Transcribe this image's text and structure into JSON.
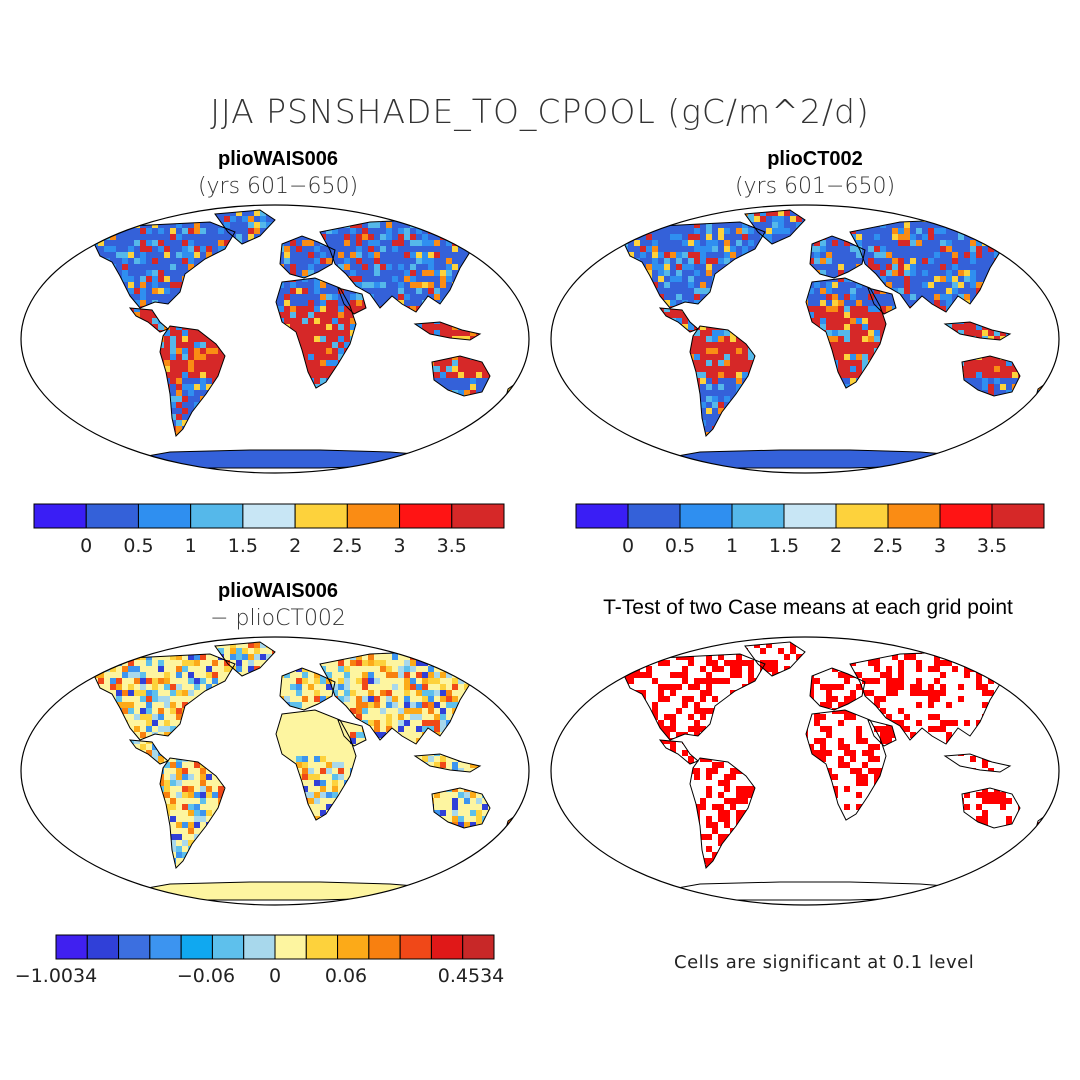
{
  "main_title": "JJA PSNSHADE_TO_CPOOL (gC/m^2/d)",
  "panels": [
    {
      "title": "plioWAIS006",
      "subtitle": "(yrs 601−650)",
      "field": "absolute"
    },
    {
      "title": "plioCT002",
      "subtitle": "(yrs 601−650)",
      "field": "absolute"
    },
    {
      "title": "plioWAIS006",
      "subtitle": "− plioCT002",
      "field": "difference"
    },
    {
      "title": "T-Test of two Case means at each grid point",
      "subtitle": "",
      "field": "significance"
    }
  ],
  "colorbar_abs": {
    "colors": [
      "#3a1ef5",
      "#3461d9",
      "#2f8ff0",
      "#55b8ea",
      "#c8e6f5",
      "#fdd23c",
      "#fa8c14",
      "#ff1414",
      "#d62828"
    ],
    "ticks": [
      "0",
      "0.5",
      "1",
      "1.5",
      "2",
      "2.5",
      "3",
      "3.5"
    ]
  },
  "colorbar_diff": {
    "colors": [
      "#4020f0",
      "#3040d8",
      "#3c6fe0",
      "#3c94f0",
      "#10a8f0",
      "#5ec0ec",
      "#a8d8ec",
      "#fdf5a0",
      "#fdd23c",
      "#fcaa18",
      "#f88010",
      "#f04818",
      "#e01818",
      "#c82828"
    ],
    "ticks": [
      "−1.0034",
      "−0.06",
      "0",
      "0.06",
      "0.4534"
    ]
  },
  "note": "Cells are significant at 0.1 level"
}
